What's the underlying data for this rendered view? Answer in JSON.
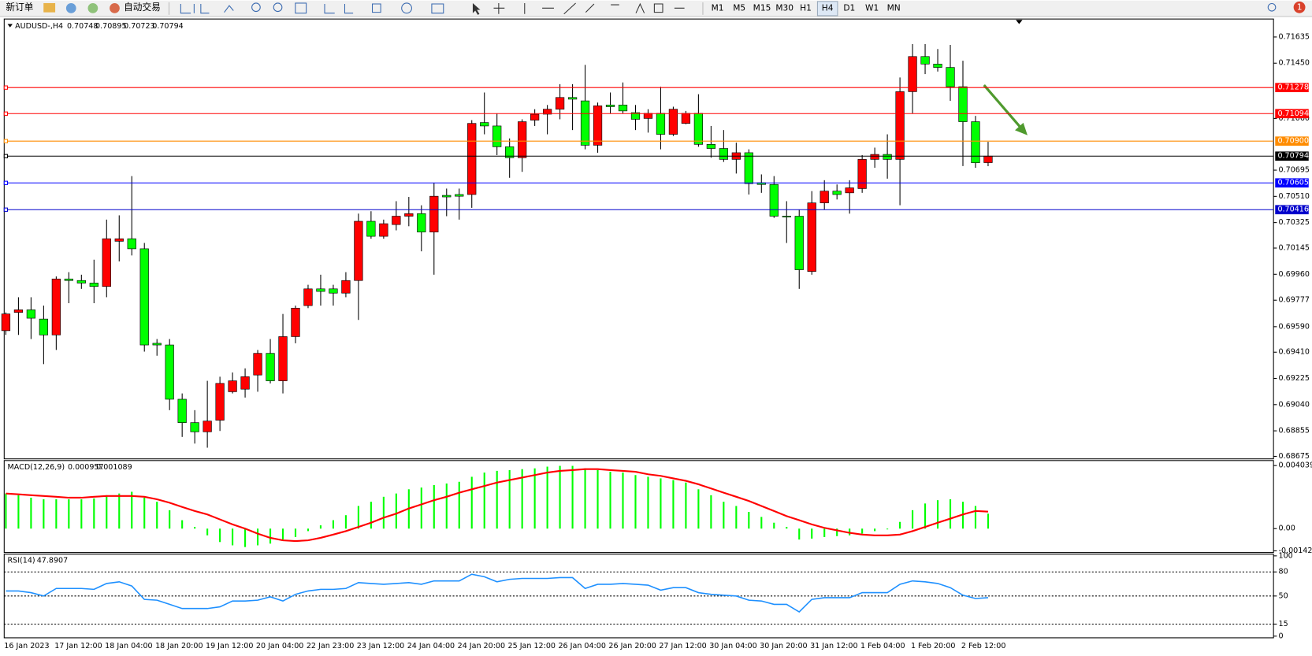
{
  "toolbar": {
    "buttons": [
      "新订单",
      "自动交易"
    ],
    "timeframes": [
      "M1",
      "M5",
      "M15",
      "M30",
      "H1",
      "H4",
      "D1",
      "W1",
      "MN"
    ],
    "badge": "1"
  },
  "chart_data": [
    {
      "type": "candlestick",
      "title": "AUDUSD-,H4",
      "categories": [
        "16 Jan 2023",
        null,
        null,
        null,
        "17 Jan 12:00",
        null,
        null,
        null,
        "18 Jan 04:00",
        null,
        null,
        null,
        "18 Jan 20:00",
        null,
        null,
        null,
        "19 Jan 12:00",
        null,
        null,
        null,
        "20 Jan 04:00",
        null,
        null,
        null,
        "22 Jan 23:00",
        null,
        null,
        null,
        "23 Jan 12:00",
        null,
        null,
        null,
        "24 Jan 04:00",
        null,
        null,
        null,
        "24 Jan 20:00",
        null,
        null,
        null,
        "25 Jan 12:00",
        null,
        null,
        null,
        "26 Jan 04:00",
        null,
        null,
        null,
        "26 Jan 20:00",
        null,
        null,
        null,
        "27 Jan 12:00",
        null,
        null,
        null,
        "30 Jan 04:00",
        null,
        null,
        null,
        "30 Jan 20:00",
        null,
        null,
        null,
        "31 Jan 12:00",
        null,
        null,
        null,
        "1 Feb 04:00",
        null,
        null,
        null,
        "1 Feb 20:00",
        null,
        null,
        null,
        "2 Feb 12:00",
        null,
        null
      ],
      "open": [
        0.69562,
        0.69691,
        0.69709,
        0.69644,
        0.69532,
        0.69927,
        0.69916,
        0.69898,
        0.69874,
        0.70193,
        0.70211,
        0.7014,
        0.69473,
        0.69461,
        0.69078,
        0.68913,
        0.68848,
        0.6893,
        0.69131,
        0.69149,
        0.69249,
        0.69402,
        0.69208,
        0.6952,
        0.69739,
        0.69857,
        0.69857,
        0.69827,
        0.69916,
        0.70334,
        0.70228,
        0.70311,
        0.7037,
        0.70388,
        0.70258,
        0.70517,
        0.70523,
        0.70523,
        0.71031,
        0.71007,
        0.7086,
        0.70783,
        0.71048,
        0.7109,
        0.71125,
        0.71208,
        0.71184,
        0.70871,
        0.71155,
        0.71155,
        0.71101,
        0.7106,
        0.71096,
        0.70948,
        0.71025,
        0.71096,
        0.70877,
        0.70848,
        0.70771,
        0.70818,
        0.70606,
        0.70594,
        0.7037,
        0.7037,
        0.6998,
        0.70464,
        0.70547,
        0.70535,
        0.70565,
        0.70771,
        0.70806,
        0.70771,
        0.71249,
        0.71497,
        0.71444,
        0.7142,
        0.71284,
        0.71037,
        0.70748
      ],
      "high": [
        0.69691,
        0.69798,
        0.69798,
        0.69739,
        0.69945,
        0.69975,
        0.69957,
        0.70063,
        0.70346,
        0.70376,
        0.70653,
        0.70181,
        0.69503,
        0.69503,
        0.69119,
        0.69001,
        0.69208,
        0.69237,
        0.69267,
        0.69296,
        0.69426,
        0.69503,
        0.6968,
        0.69739,
        0.69886,
        0.69957,
        0.69886,
        0.69975,
        0.70388,
        0.70405,
        0.70346,
        0.70476,
        0.70506,
        0.70447,
        0.70606,
        0.70565,
        0.70565,
        0.71048,
        0.71243,
        0.71096,
        0.70919,
        0.71054,
        0.71125,
        0.71155,
        0.71302,
        0.71302,
        0.71438,
        0.71172,
        0.71243,
        0.71314,
        0.71155,
        0.71125,
        0.71284,
        0.71143,
        0.71113,
        0.71231,
        0.71007,
        0.70978,
        0.70889,
        0.70842,
        0.70665,
        0.70653,
        0.70476,
        0.70417,
        0.70547,
        0.70624,
        0.70594,
        0.70624,
        0.70801,
        0.70854,
        0.70948,
        0.71349,
        0.71585,
        0.71585,
        0.7155,
        0.71579,
        0.71467,
        0.71078,
        0.70895
      ],
      "low": [
        0.69532,
        0.69532,
        0.69503,
        0.69326,
        0.69426,
        0.69756,
        0.69857,
        0.69756,
        0.69798,
        0.70051,
        0.70093,
        0.69414,
        0.69385,
        0.69001,
        0.68812,
        0.68765,
        0.68736,
        0.68854,
        0.69119,
        0.6909,
        0.69131,
        0.6919,
        0.69119,
        0.69473,
        0.69721,
        0.69739,
        0.69739,
        0.69798,
        0.69638,
        0.70211,
        0.70211,
        0.7027,
        0.70299,
        0.70122,
        0.69957,
        0.7037,
        0.70346,
        0.70429,
        0.70948,
        0.70801,
        0.70641,
        0.70683,
        0.71007,
        0.70948,
        0.71054,
        0.70978,
        0.70842,
        0.70818,
        0.71096,
        0.71096,
        0.70978,
        0.7096,
        0.70842,
        0.70936,
        0.71019,
        0.7086,
        0.70783,
        0.70753,
        0.70671,
        0.70523,
        0.70535,
        0.70358,
        0.70181,
        0.69857,
        0.69957,
        0.70417,
        0.70488,
        0.70388,
        0.70535,
        0.70712,
        0.70635,
        0.70447,
        0.71096,
        0.71373,
        0.71391,
        0.71184,
        0.70724,
        0.70712,
        0.70723
      ],
      "close": [
        0.6968,
        0.69709,
        0.6965,
        0.69532,
        0.69927,
        0.69916,
        0.69898,
        0.69874,
        0.70211,
        0.70211,
        0.7014,
        0.69461,
        0.69461,
        0.69078,
        0.68913,
        0.68848,
        0.68924,
        0.6919,
        0.69208,
        0.69237,
        0.69402,
        0.69208,
        0.6952,
        0.69721,
        0.69857,
        0.69839,
        0.69827,
        0.69916,
        0.70334,
        0.70228,
        0.70317,
        0.7037,
        0.70388,
        0.70258,
        0.70511,
        0.70506,
        0.70511,
        0.71025,
        0.71007,
        0.7086,
        0.70783,
        0.71037,
        0.7109,
        0.71125,
        0.71208,
        0.71196,
        0.70871,
        0.71149,
        0.71143,
        0.71113,
        0.71054,
        0.71096,
        0.70948,
        0.71125,
        0.71096,
        0.70877,
        0.70848,
        0.70771,
        0.70818,
        0.706,
        0.70594,
        0.7037,
        0.70364,
        0.69992,
        0.70464,
        0.70547,
        0.70523,
        0.7057,
        0.70771,
        0.70806,
        0.70771,
        0.71249,
        0.71497,
        0.71444,
        0.7142,
        0.71284,
        0.71037,
        0.70747,
        0.70794
      ],
      "up_color": "#ff0000",
      "down_color": "#00ff00",
      "ylim": [
        0.68663,
        0.7175
      ],
      "yticks": [
        0.71635,
        {
          "value": 0.7145,
          "label": "0.71450"
        },
        {
          "value": 0.7106,
          "label": "0.71060"
        },
        0.70695,
        {
          "value": 0.7051,
          "label": "0.70510"
        },
        0.70325,
        0.70145,
        {
          "value": 0.6996,
          "label": "0.69960"
        },
        0.69777,
        {
          "value": 0.6959,
          "label": "0.69590"
        },
        {
          "value": 0.6941,
          "label": "0.69410"
        },
        0.69225,
        {
          "value": 0.6904,
          "label": "0.69040"
        },
        0.68855,
        0.68675
      ],
      "hlines": [
        {
          "value": 0.71278,
          "color": "#ff0000"
        },
        {
          "value": 0.71094,
          "color": "#ff0000"
        },
        {
          "value": 0.709,
          "label": "0.70900",
          "color": "#ff8c00"
        },
        {
          "value": 0.70794,
          "color": "#000000"
        },
        {
          "value": 0.70605,
          "color": "#0000ff"
        },
        {
          "value": 0.70416,
          "color": "#0000cc"
        }
      ]
    },
    {
      "type": "macd",
      "title": "MACD(12,26,9)",
      "series": [
        {
          "kind": "bar",
          "color": "#00ff00",
          "values": [
            0.00225,
            0.00214,
            0.00198,
            0.00188,
            0.00188,
            0.00188,
            0.00188,
            0.00193,
            0.00214,
            0.00225,
            0.00236,
            0.00198,
            0.00172,
            0.00118,
            0.00054,
            0.00011,
            -0.00043,
            -0.00086,
            -0.00107,
            -0.00118,
            -0.00107,
            -0.00096,
            -0.0007,
            -0.00054,
            -0.00016,
            0.00021,
            0.00054,
            0.00086,
            0.00145,
            0.00172,
            0.00204,
            0.00225,
            0.00252,
            0.00263,
            0.00279,
            0.00289,
            0.003,
            0.00332,
            0.00359,
            0.0037,
            0.00375,
            0.00381,
            0.00386,
            0.00397,
            0.00402,
            0.00402,
            0.00386,
            0.00375,
            0.00364,
            0.00359,
            0.00343,
            0.00332,
            0.00322,
            0.00311,
            0.00295,
            0.00252,
            0.00214,
            0.00172,
            0.00145,
            0.00107,
            0.00075,
            0.00038,
            0.00011,
            -0.0007,
            -0.00064,
            -0.00054,
            -0.00048,
            -0.00043,
            -0.00032,
            -0.00016,
            -5e-05,
            0.00043,
            0.00118,
            0.00161,
            0.00182,
            0.00188,
            0.00172,
            0.00145,
            0.000957
          ]
        },
        {
          "kind": "line",
          "color": "#ff0000",
          "values": [
            0.00225,
            0.0022,
            0.00214,
            0.00209,
            0.00204,
            0.00198,
            0.00198,
            0.00204,
            0.00209,
            0.00209,
            0.00209,
            0.00204,
            0.00188,
            0.00166,
            0.00139,
            0.00113,
            0.00091,
            0.00059,
            0.00027,
            0,
            -0.00032,
            -0.00059,
            -0.00075,
            -0.0008,
            -0.00075,
            -0.00059,
            -0.00038,
            -0.00016,
            0.00011,
            0.00038,
            0.0007,
            0.00096,
            0.00129,
            0.00155,
            0.00182,
            0.00204,
            0.0023,
            0.00252,
            0.00273,
            0.00295,
            0.00311,
            0.00327,
            0.00343,
            0.00359,
            0.0037,
            0.00375,
            0.00381,
            0.00381,
            0.00375,
            0.0037,
            0.00364,
            0.00348,
            0.00338,
            0.00322,
            0.00306,
            0.00284,
            0.00257,
            0.0023,
            0.00204,
            0.00177,
            0.00145,
            0.00113,
            0.0008,
            0.00054,
            0.00027,
            5e-05,
            -0.00011,
            -0.00027,
            -0.00038,
            -0.00043,
            -0.00043,
            -0.00038,
            -0.00016,
            0.00011,
            0.00038,
            0.00064,
            0.00091,
            0.00113,
            0.001089
          ]
        }
      ],
      "ylim": [
        -0.001424,
        0.004039
      ],
      "yticks": [
        0.004039,
        {
          "value": 0,
          "label": "0.00"
        },
        -0.001424
      ]
    },
    {
      "type": "line",
      "title": "RSI(14)",
      "color": "#1e90ff",
      "values": [
        56.3,
        56.3,
        54.2,
        50,
        59.4,
        59.4,
        59.4,
        58.3,
        65.6,
        67.7,
        62.5,
        45.8,
        44.8,
        39.6,
        34.4,
        34.4,
        34.4,
        36.5,
        43.8,
        43.8,
        44.8,
        49,
        43.8,
        52.1,
        56.3,
        58.3,
        58.3,
        59.4,
        66.7,
        65.6,
        64.6,
        65.6,
        66.7,
        64.6,
        68.8,
        68.8,
        68.8,
        77.1,
        74,
        67.7,
        70.8,
        71.9,
        71.9,
        71.9,
        72.9,
        72.9,
        59.4,
        64.6,
        64.6,
        65.6,
        64.6,
        63.5,
        57.3,
        60.4,
        60.4,
        54.2,
        52.1,
        51,
        50,
        44.8,
        43.8,
        39.6,
        39.6,
        30.2,
        45.8,
        47.9,
        47.9,
        47.9,
        54.2,
        54.2,
        54.2,
        64.6,
        68.8,
        67.7,
        65.6,
        60.4,
        51,
        46.9,
        47.8907
      ],
      "ylim": [
        0,
        100
      ],
      "yticks": [
        0,
        15,
        50,
        80,
        100
      ],
      "levels": [
        15,
        50,
        80
      ]
    }
  ]
}
